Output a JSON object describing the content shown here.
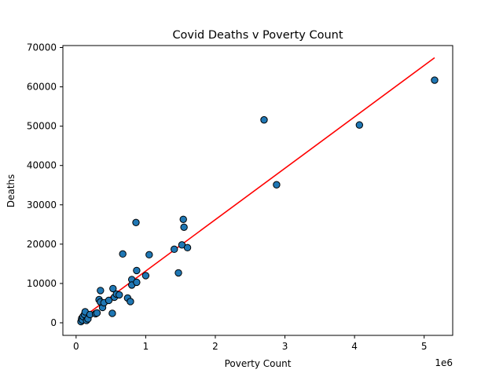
{
  "chart_data": {
    "type": "scatter",
    "title": "Covid Deaths v Poverty Count",
    "xlabel": "Poverty Count",
    "ylabel": "Deaths",
    "x_offset_label": "1e6",
    "xlim": [
      -0.19,
      5.41
    ],
    "ylim": [
      -3200,
      70500
    ],
    "xticks": [
      0,
      1,
      2,
      3,
      4,
      5
    ],
    "xtick_labels": [
      "0",
      "1",
      "2",
      "3",
      "4",
      "5"
    ],
    "yticks": [
      0,
      10000,
      20000,
      30000,
      40000,
      50000,
      60000,
      70000
    ],
    "ytick_labels": [
      "0",
      "10000",
      "20000",
      "30000",
      "40000",
      "50000",
      "60000",
      "70000"
    ],
    "grid": false,
    "colors": {
      "marker_fill": "#1f77b4",
      "marker_edge": "#000000",
      "fit_line": "#ff0000"
    },
    "series": [
      {
        "type": "scatter",
        "x": [
          0.07,
          0.08,
          0.09,
          0.1,
          0.12,
          0.13,
          0.15,
          0.17,
          0.2,
          0.28,
          0.3,
          0.33,
          0.35,
          0.35,
          0.38,
          0.4,
          0.47,
          0.52,
          0.53,
          0.55,
          0.58,
          0.62,
          0.67,
          0.74,
          0.78,
          0.8,
          0.8,
          0.86,
          0.87,
          0.87,
          1.0,
          1.05,
          1.41,
          1.47,
          1.52,
          1.54,
          1.55,
          1.6,
          2.7,
          2.88,
          4.07,
          5.15
        ],
        "y": [
          300,
          1100,
          700,
          1600,
          2100,
          2800,
          600,
          1000,
          2100,
          2300,
          2500,
          5900,
          5300,
          8200,
          3900,
          5100,
          5700,
          2400,
          8700,
          6500,
          7300,
          7100,
          17500,
          6300,
          5400,
          11000,
          9600,
          25500,
          13300,
          10300,
          12000,
          17300,
          18700,
          12700,
          19800,
          26300,
          24300,
          19100,
          51600,
          35100,
          50300,
          61700
        ]
      }
    ],
    "fit_line": {
      "x": [
        0.07,
        5.15
      ],
      "y": [
        1000,
        67400
      ]
    }
  }
}
